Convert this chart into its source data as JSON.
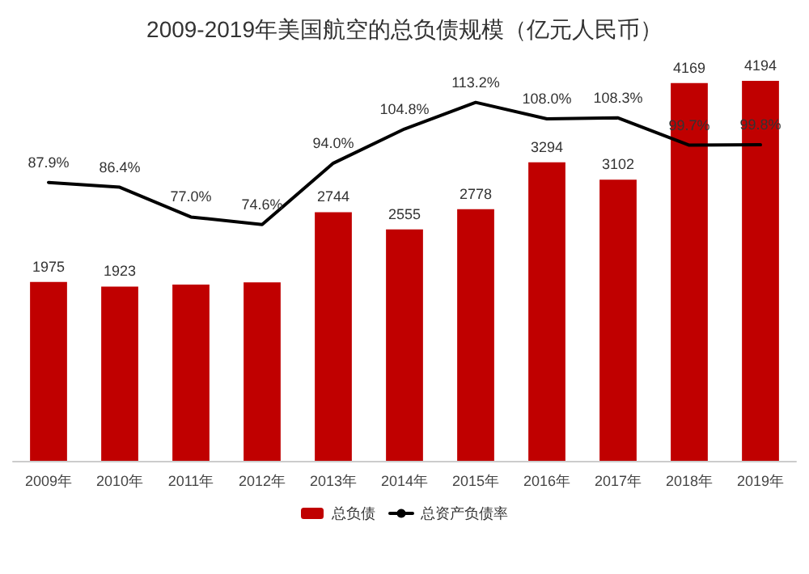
{
  "chart_data": {
    "type": "bar",
    "title": "2009-2019年美国航空的总负债规模（亿元人民币）",
    "categories": [
      "2009年",
      "2010年",
      "2011年",
      "2012年",
      "2013年",
      "2014年",
      "2015年",
      "2016年",
      "2017年",
      "2018年",
      "2019年"
    ],
    "series": [
      {
        "name": "总负债",
        "color": "#c00000",
        "values": [
          1975,
          1923,
          1945,
          1970,
          2744,
          2555,
          2778,
          3294,
          3102,
          4169,
          4194
        ],
        "value_labels": [
          "1975",
          "1923",
          null,
          null,
          "2744",
          "2555",
          "2778",
          "3294",
          "3102",
          "4169",
          "4194"
        ]
      },
      {
        "name": "总资产负债率",
        "type": "line",
        "axis": "y2",
        "color": "#000000",
        "values": [
          87.9,
          86.4,
          77.0,
          74.6,
          94.0,
          104.8,
          113.2,
          108.0,
          108.3,
          99.7,
          99.8
        ],
        "value_labels": [
          "87.9%",
          "86.4%",
          "77.0%",
          "74.6%",
          "94.0%",
          "104.8%",
          "113.2%",
          "108.0%",
          "108.3%",
          "99.7%",
          "99.8%"
        ]
      }
    ],
    "tick_labels": "x",
    "grid": false,
    "legend": "bottom",
    "marker": "none",
    "line_style": "solid"
  }
}
